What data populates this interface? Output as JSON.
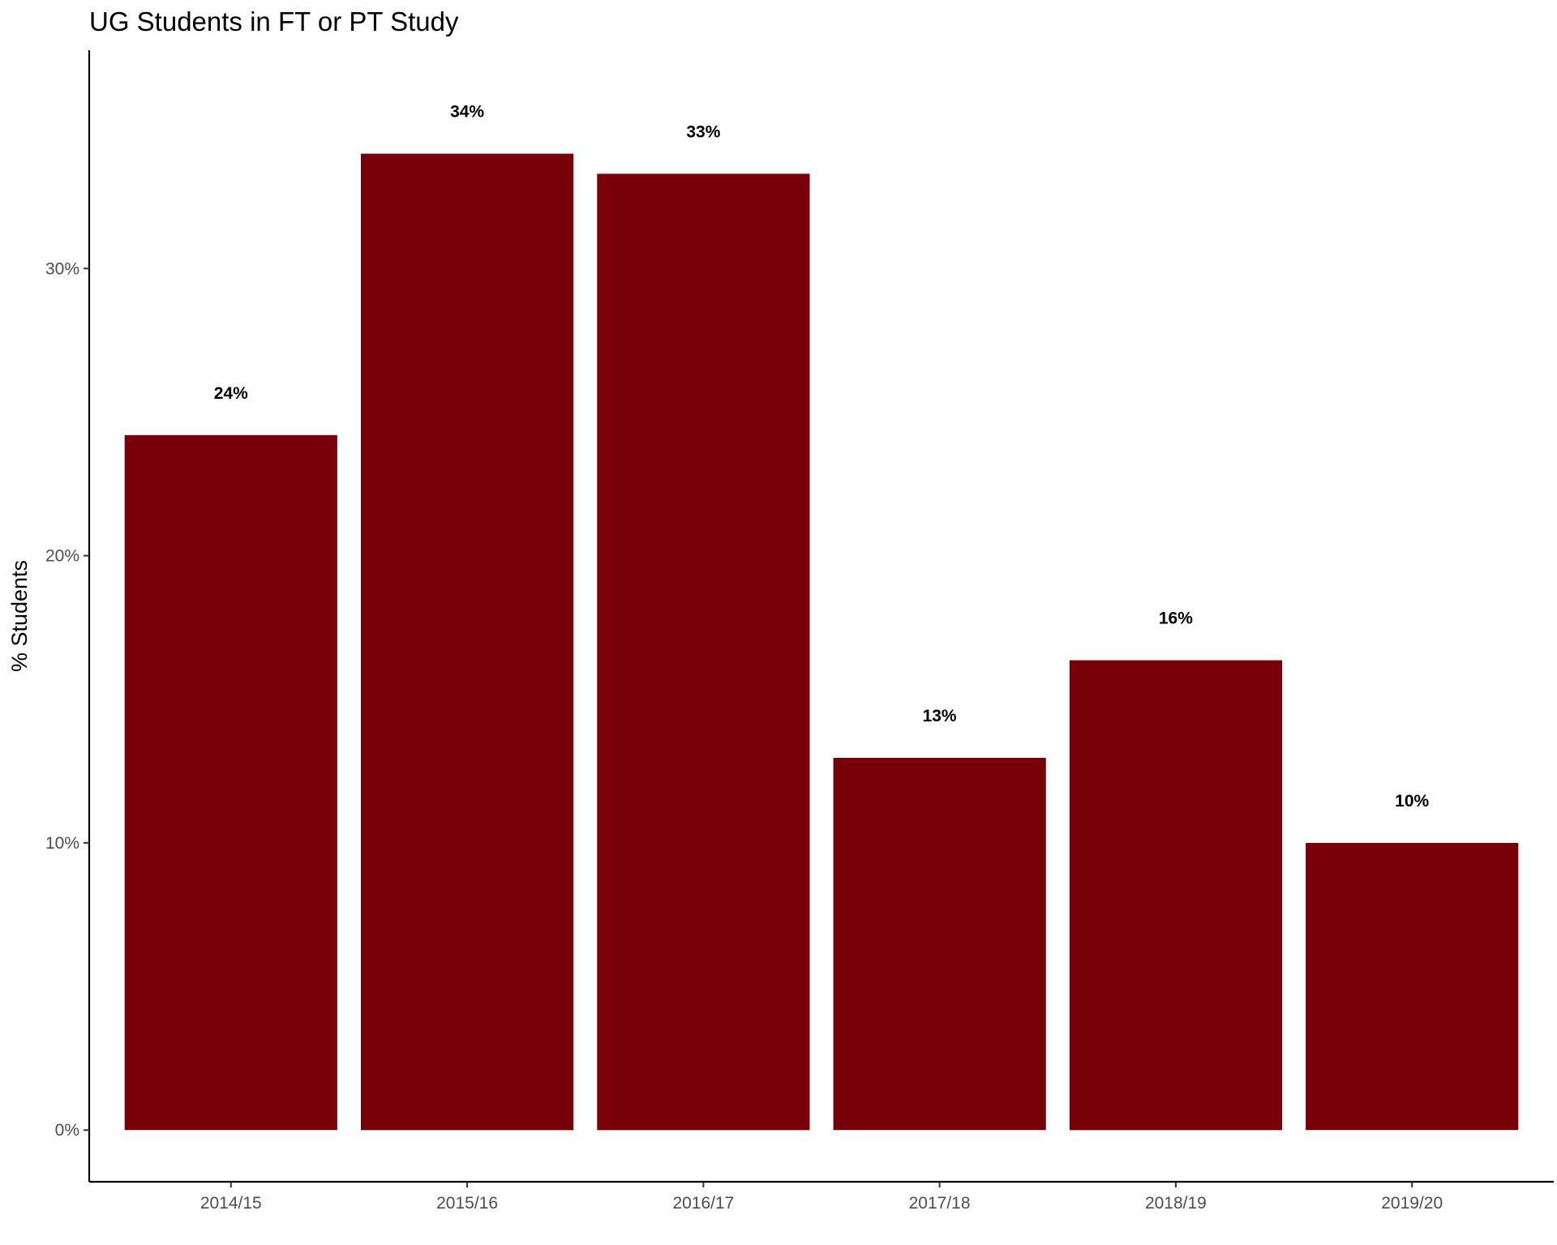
{
  "chart_data": {
    "type": "bar",
    "title": "UG Students in FT or PT Study",
    "xlabel": "",
    "ylabel": "% Students",
    "categories": [
      "2014/15",
      "2015/16",
      "2016/17",
      "2017/18",
      "2018/19",
      "2019/20"
    ],
    "values": [
      24.2,
      34.0,
      33.3,
      12.96,
      16.36,
      10.0
    ],
    "data_labels": [
      "24%",
      "34%",
      "33%",
      "13%",
      "16%",
      "10%"
    ],
    "y_ticks": [
      0,
      10,
      20,
      30
    ],
    "y_tick_labels": [
      "0%",
      "10%",
      "20%",
      "30%"
    ],
    "ylim": [
      -1.8,
      37.6
    ],
    "grid": false,
    "legend": "none",
    "bar_color": "#770009",
    "axis_color": "#000000"
  }
}
